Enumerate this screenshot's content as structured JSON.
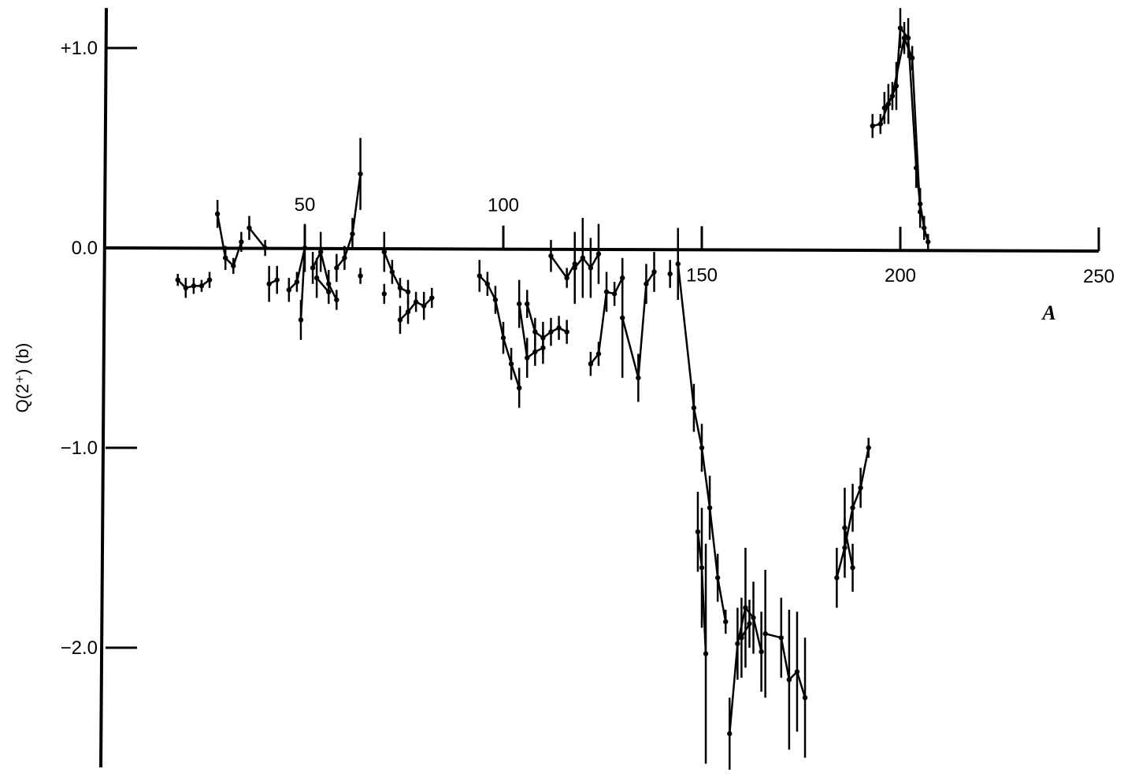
{
  "chart_data": {
    "type": "line",
    "title": "",
    "xlabel": "A",
    "ylabel": "Q(2⁺) (b)",
    "xlim": [
      0,
      250
    ],
    "ylim": [
      -2.6,
      1.2
    ],
    "x_ticks": [
      {
        "value": 50,
        "label": "50",
        "label_side": "above"
      },
      {
        "value": 100,
        "label": "100",
        "label_side": "above"
      },
      {
        "value": 150,
        "label": "150",
        "label_side": "below"
      },
      {
        "value": 200,
        "label": "200",
        "label_side": "below"
      },
      {
        "value": 250,
        "label": "250",
        "label_side": "below"
      }
    ],
    "y_ticks": [
      {
        "value": 1.0,
        "label": "+1.0"
      },
      {
        "value": 0.0,
        "label": "0.0"
      },
      {
        "value": -1.0,
        "label": "−1.0"
      },
      {
        "value": -2.0,
        "label": "−2.0"
      }
    ],
    "grid": false,
    "series": [
      {
        "points": [
          [
            18,
            -0.16,
            0.03
          ],
          [
            20,
            -0.2,
            0.05
          ],
          [
            22,
            -0.19,
            0.04
          ],
          [
            24,
            -0.19,
            0.03
          ],
          [
            26,
            -0.16,
            0.04
          ]
        ]
      },
      {
        "points": [
          [
            28,
            0.17,
            0.07
          ],
          [
            30,
            -0.05,
            0.06
          ],
          [
            32,
            -0.09,
            0.04
          ],
          [
            34,
            0.03,
            0.05
          ]
        ]
      },
      {
        "points": [
          [
            36,
            0.1,
            0.06
          ],
          [
            40,
            0.0,
            0.04
          ]
        ]
      },
      {
        "points": [
          [
            41,
            -0.18,
            0.09
          ],
          [
            43,
            -0.16,
            0.07
          ]
        ]
      },
      {
        "points": [
          [
            46,
            -0.21,
            0.06
          ],
          [
            48,
            -0.17,
            0.05
          ],
          [
            50,
            0.0,
            0.12
          ],
          [
            49,
            -0.36,
            0.1
          ]
        ]
      },
      {
        "points": [
          [
            52,
            -0.1,
            0.08
          ],
          [
            54,
            -0.02,
            0.1
          ],
          [
            56,
            -0.18,
            0.07
          ],
          [
            58,
            -0.26,
            0.05
          ]
        ]
      },
      {
        "points": [
          [
            53,
            -0.15,
            0.1
          ],
          [
            56,
            -0.22,
            0.06
          ]
        ]
      },
      {
        "points": [
          [
            58,
            -0.1,
            0.07
          ],
          [
            60,
            -0.05,
            0.06
          ],
          [
            62,
            0.07,
            0.08
          ],
          [
            64,
            0.37,
            0.18
          ]
        ]
      },
      {
        "points": [
          [
            64,
            -0.14,
            0.04
          ]
        ]
      },
      {
        "points": [
          [
            70,
            -0.02,
            0.1
          ],
          [
            72,
            -0.12,
            0.06
          ],
          [
            74,
            -0.2,
            0.05
          ],
          [
            76,
            -0.22,
            0.06
          ]
        ]
      },
      {
        "points": [
          [
            70,
            -0.23,
            0.05
          ]
        ]
      },
      {
        "points": [
          [
            74,
            -0.36,
            0.07
          ],
          [
            76,
            -0.32,
            0.06
          ],
          [
            78,
            -0.27,
            0.05
          ],
          [
            80,
            -0.29,
            0.07
          ],
          [
            82,
            -0.25,
            0.05
          ]
        ]
      },
      {
        "points": [
          [
            94,
            -0.14,
            0.08
          ],
          [
            96,
            -0.18,
            0.06
          ],
          [
            98,
            -0.26,
            0.07
          ],
          [
            100,
            -0.45,
            0.08
          ],
          [
            102,
            -0.58,
            0.08
          ],
          [
            104,
            -0.7,
            0.1
          ]
        ]
      },
      {
        "points": [
          [
            104,
            -0.28,
            0.12
          ],
          [
            106,
            -0.55,
            0.1
          ],
          [
            108,
            -0.52,
            0.07
          ],
          [
            110,
            -0.5,
            0.08
          ]
        ]
      },
      {
        "points": [
          [
            106,
            -0.28,
            0.07
          ],
          [
            108,
            -0.42,
            0.07
          ],
          [
            110,
            -0.45,
            0.08
          ],
          [
            112,
            -0.42,
            0.07
          ],
          [
            114,
            -0.4,
            0.06
          ],
          [
            116,
            -0.42,
            0.06
          ]
        ]
      },
      {
        "points": [
          [
            112,
            -0.04,
            0.08
          ],
          [
            116,
            -0.15,
            0.05
          ],
          [
            118,
            -0.08,
            0.07
          ]
        ]
      },
      {
        "points": [
          [
            118,
            -0.1,
            0.18
          ],
          [
            120,
            -0.05,
            0.2
          ],
          [
            122,
            -0.1,
            0.15
          ],
          [
            124,
            -0.03,
            0.15
          ]
        ]
      },
      {
        "points": [
          [
            122,
            -0.58,
            0.06
          ],
          [
            124,
            -0.53,
            0.06
          ],
          [
            126,
            -0.22,
            0.1
          ],
          [
            128,
            -0.23,
            0.06
          ],
          [
            130,
            -0.15,
            0.08
          ]
        ]
      },
      {
        "points": [
          [
            130,
            -0.35,
            0.3
          ],
          [
            134,
            -0.65,
            0.12
          ],
          [
            136,
            -0.18,
            0.1
          ],
          [
            138,
            -0.12,
            0.1
          ]
        ]
      },
      {
        "points": [
          [
            142,
            -0.13,
            0.07
          ]
        ]
      },
      {
        "points": [
          [
            144,
            -0.08,
            0.18
          ],
          [
            148,
            -0.8,
            0.12
          ],
          [
            150,
            -1.0,
            0.12
          ],
          [
            152,
            -1.3,
            0.16
          ],
          [
            154,
            -1.65,
            0.12
          ],
          [
            156,
            -1.87,
            0.06
          ]
        ]
      },
      {
        "points": [
          [
            149,
            -1.42,
            0.2
          ],
          [
            150,
            -1.6,
            0.3
          ],
          [
            151,
            -2.03,
            0.55
          ]
        ]
      },
      {
        "points": [
          [
            157,
            -2.43,
            0.18
          ],
          [
            159,
            -1.98,
            0.18
          ],
          [
            161,
            -1.8,
            0.3
          ],
          [
            163,
            -1.85,
            0.18
          ],
          [
            165,
            -2.02,
            0.2
          ]
        ]
      },
      {
        "points": [
          [
            160,
            -1.95,
            0.2
          ],
          [
            162,
            -1.88,
            0.12
          ]
        ]
      },
      {
        "points": [
          [
            166,
            -1.93,
            0.32
          ],
          [
            170,
            -1.95,
            0.2
          ],
          [
            172,
            -2.16,
            0.35
          ],
          [
            174,
            -2.12,
            0.3
          ],
          [
            176,
            -2.25,
            0.3
          ]
        ]
      },
      {
        "points": [
          [
            184,
            -1.65,
            0.15
          ],
          [
            186,
            -1.5,
            0.15
          ],
          [
            188,
            -1.3,
            0.12
          ],
          [
            190,
            -1.2,
            0.1
          ],
          [
            192,
            -1.0,
            0.05
          ]
        ]
      },
      {
        "points": [
          [
            186,
            -1.4,
            0.2
          ],
          [
            188,
            -1.6,
            0.12
          ]
        ]
      },
      {
        "points": [
          [
            193,
            0.61,
            0.06
          ],
          [
            195,
            0.62,
            0.05
          ],
          [
            197,
            0.72,
            0.1
          ],
          [
            199,
            0.81,
            0.12
          ],
          [
            200,
            1.1,
            0.1
          ],
          [
            202,
            1.05,
            0.1
          ],
          [
            204,
            0.4,
            0.1
          ],
          [
            205,
            0.22,
            0.08
          ],
          [
            206,
            0.1,
            0.06
          ],
          [
            207,
            0.03,
            0.04
          ]
        ]
      },
      {
        "points": [
          [
            196,
            0.7,
            0.08
          ],
          [
            198,
            0.76,
            0.07
          ],
          [
            201,
            1.05,
            0.08
          ],
          [
            203,
            0.95,
            0.06
          ],
          [
            205,
            0.18,
            0.08
          ]
        ]
      }
    ]
  }
}
